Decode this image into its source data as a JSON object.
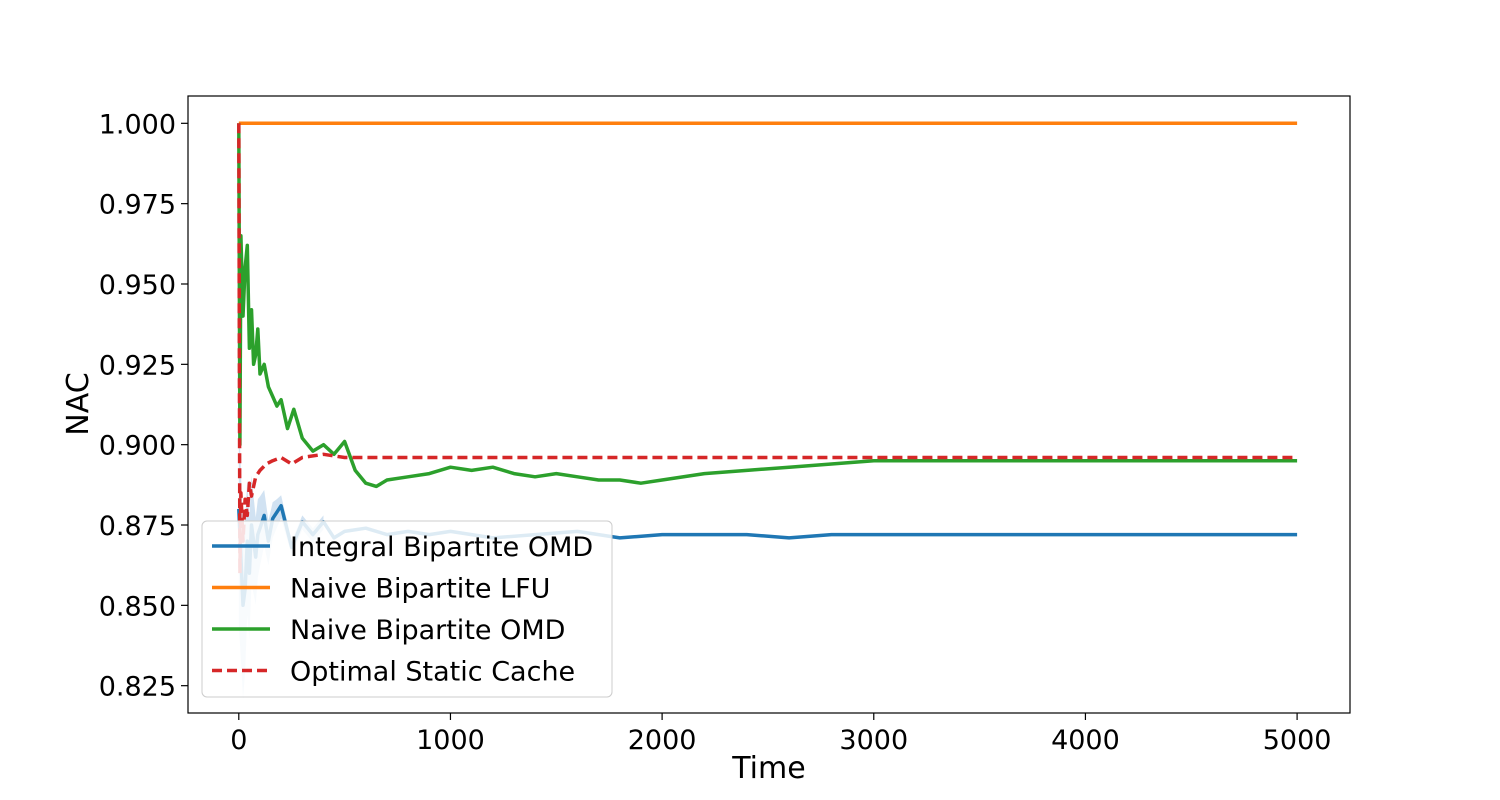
{
  "chart_data": {
    "type": "line",
    "title": "",
    "xlabel": "Time",
    "ylabel": "NAC",
    "xlim": [
      -240,
      5250
    ],
    "ylim": [
      0.8165,
      1.0085
    ],
    "xticks": [
      0,
      1000,
      2000,
      3000,
      4000,
      5000
    ],
    "yticks": [
      0.825,
      0.85,
      0.875,
      0.9,
      0.925,
      0.95,
      0.975,
      1.0
    ],
    "ytick_labels": [
      "0.825",
      "0.850",
      "0.875",
      "0.900",
      "0.925",
      "0.950",
      "0.975",
      "1.000"
    ],
    "grid": false,
    "legend_position": "lower-left",
    "series": [
      {
        "name": "Integral Bipartite OMD",
        "color": "#1f77b4",
        "style": "solid",
        "band_color": "#c6dbef",
        "x": [
          0,
          10,
          20,
          30,
          40,
          50,
          60,
          70,
          80,
          90,
          100,
          120,
          140,
          160,
          180,
          200,
          250,
          300,
          350,
          400,
          450,
          500,
          600,
          700,
          800,
          900,
          1000,
          1200,
          1400,
          1600,
          1800,
          2000,
          2200,
          2400,
          2600,
          2800,
          3000,
          3200,
          3400,
          3600,
          3800,
          4000,
          4200,
          4400,
          4600,
          4800,
          5000
        ],
        "y": [
          0.88,
          0.865,
          0.85,
          0.855,
          0.87,
          0.86,
          0.875,
          0.87,
          0.865,
          0.872,
          0.874,
          0.878,
          0.87,
          0.877,
          0.879,
          0.881,
          0.868,
          0.876,
          0.872,
          0.876,
          0.871,
          0.873,
          0.874,
          0.872,
          0.873,
          0.872,
          0.873,
          0.871,
          0.872,
          0.873,
          0.871,
          0.872,
          0.872,
          0.872,
          0.871,
          0.872,
          0.872,
          0.872,
          0.872,
          0.872,
          0.872,
          0.872,
          0.872,
          0.872,
          0.872,
          0.872,
          0.872
        ]
      },
      {
        "name": "Naive Bipartite LFU",
        "color": "#ff7f0e",
        "style": "solid",
        "x": [
          0,
          5000
        ],
        "y": [
          1.0,
          1.0
        ]
      },
      {
        "name": "Naive Bipartite OMD",
        "color": "#2ca02c",
        "style": "solid",
        "x": [
          0,
          5,
          10,
          20,
          30,
          40,
          50,
          60,
          70,
          80,
          90,
          100,
          120,
          140,
          160,
          180,
          200,
          230,
          260,
          300,
          350,
          400,
          450,
          500,
          550,
          600,
          650,
          700,
          800,
          900,
          1000,
          1100,
          1200,
          1300,
          1400,
          1500,
          1600,
          1700,
          1800,
          1900,
          2000,
          2200,
          2400,
          2600,
          2800,
          3000,
          3200,
          3400,
          3600,
          3800,
          4000,
          4200,
          4400,
          4600,
          4800,
          5000
        ],
        "y": [
          1.0,
          0.9,
          0.965,
          0.94,
          0.955,
          0.962,
          0.93,
          0.942,
          0.925,
          0.928,
          0.936,
          0.922,
          0.925,
          0.918,
          0.915,
          0.912,
          0.914,
          0.905,
          0.911,
          0.902,
          0.898,
          0.9,
          0.897,
          0.901,
          0.892,
          0.888,
          0.887,
          0.889,
          0.89,
          0.891,
          0.893,
          0.892,
          0.893,
          0.891,
          0.89,
          0.891,
          0.89,
          0.889,
          0.889,
          0.888,
          0.889,
          0.891,
          0.892,
          0.893,
          0.894,
          0.895,
          0.895,
          0.895,
          0.895,
          0.895,
          0.895,
          0.895,
          0.895,
          0.895,
          0.895,
          0.895
        ]
      },
      {
        "name": "Optimal Static Cache",
        "color": "#d62728",
        "style": "dashed",
        "x": [
          0,
          5,
          10,
          20,
          30,
          40,
          50,
          60,
          80,
          100,
          130,
          160,
          200,
          250,
          300,
          400,
          500,
          600,
          800,
          1000,
          1500,
          2000,
          3000,
          4000,
          5000
        ],
        "y": [
          1.0,
          0.86,
          0.885,
          0.87,
          0.883,
          0.878,
          0.888,
          0.884,
          0.89,
          0.892,
          0.894,
          0.895,
          0.896,
          0.894,
          0.896,
          0.897,
          0.896,
          0.896,
          0.896,
          0.896,
          0.896,
          0.896,
          0.896,
          0.896,
          0.896
        ]
      }
    ]
  }
}
